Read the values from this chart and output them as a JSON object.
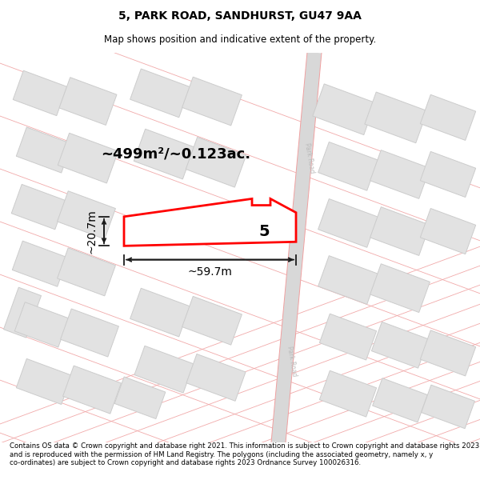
{
  "title": "5, PARK ROAD, SANDHURST, GU47 9AA",
  "subtitle": "Map shows position and indicative extent of the property.",
  "footer": "Contains OS data © Crown copyright and database right 2021. This information is subject to Crown copyright and database rights 2023 and is reproduced with the permission of HM Land Registry. The polygons (including the associated geometry, namely x, y co-ordinates) are subject to Crown copyright and database rights 2023 Ordnance Survey 100026316.",
  "area_text": "~499m²/~0.123ac.",
  "width_label": "~59.7m",
  "height_label": "~20.7m",
  "plot_number": "5",
  "bg_color": "#ffffff",
  "building_fill": "#e2e2e2",
  "building_stroke": "#cccccc",
  "plot_stroke": "#ff0000",
  "dim_color": "#1a1a1a",
  "road_fill": "#d8d8d8",
  "road_label_color": "#aaaaaa",
  "pink_line": "#f0a0a0",
  "title_fontsize": 10,
  "subtitle_fontsize": 8.5,
  "footer_fontsize": 6.2
}
